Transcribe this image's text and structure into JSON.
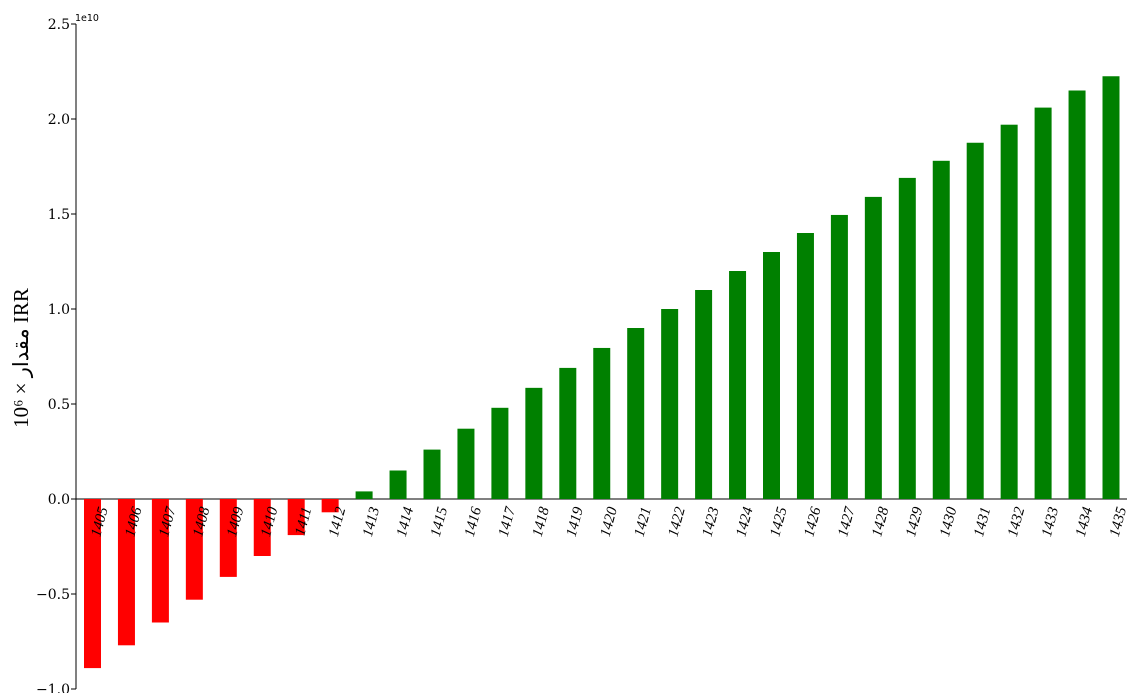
{
  "chart_data": {
    "type": "bar",
    "title": "",
    "xlabel": "",
    "ylabel": "مقدار × 10⁶ IRR",
    "y_multiplier_label": "1e10",
    "ylim": [
      -1.0,
      2.5
    ],
    "y_ticks": [
      "−1.0",
      "−0.5",
      "0.0",
      "0.5",
      "1.0",
      "1.5",
      "2.0",
      "2.5"
    ],
    "y_tick_values": [
      -1.0,
      -0.5,
      0.0,
      0.5,
      1.0,
      1.5,
      2.0,
      2.5
    ],
    "grid": false,
    "legend": "none",
    "categories": [
      "1405",
      "1406",
      "1407",
      "1408",
      "1409",
      "1410",
      "1411",
      "1412",
      "1413",
      "1414",
      "1415",
      "1416",
      "1417",
      "1418",
      "1419",
      "1420",
      "1421",
      "1422",
      "1423",
      "1424",
      "1425",
      "1426",
      "1427",
      "1428",
      "1429",
      "1430",
      "1431",
      "1432",
      "1433",
      "1434",
      "1435"
    ],
    "values": [
      -0.89,
      -0.77,
      -0.65,
      -0.53,
      -0.41,
      -0.3,
      -0.19,
      -0.07,
      0.04,
      0.15,
      0.26,
      0.37,
      0.48,
      0.585,
      0.69,
      0.795,
      0.9,
      1.0,
      1.1,
      1.2,
      1.3,
      1.4,
      1.495,
      1.59,
      1.69,
      1.78,
      1.875,
      1.97,
      2.06,
      2.15,
      2.225
    ],
    "colors": {
      "negative": "#ff0000",
      "positive": "#008000"
    }
  }
}
